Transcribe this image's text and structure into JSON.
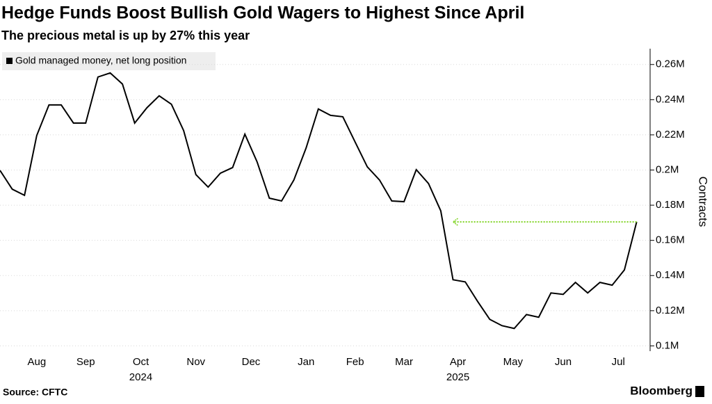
{
  "chart_data": {
    "type": "line",
    "title": "Hedge Funds Boost Bullish Gold Wagers to Highest Since April",
    "subtitle": "The precious metal is up by 27% this year",
    "y_axis_label": "Contracts",
    "source": "Source: CFTC",
    "brand": "Bloomberg",
    "x": [
      0,
      1,
      2,
      3,
      4,
      5,
      6,
      7,
      8,
      9,
      10,
      11,
      12,
      13,
      14,
      15,
      16,
      17,
      18,
      19,
      20,
      21,
      22,
      23,
      24,
      25,
      26,
      27,
      28,
      29,
      30,
      31,
      32,
      33,
      34,
      35,
      36,
      37,
      38,
      39,
      40,
      41,
      42,
      43,
      44,
      45,
      46,
      47,
      48,
      49,
      50,
      51,
      52
    ],
    "xlim": [
      0,
      53.1
    ],
    "xticks": [
      {
        "value": 3.0,
        "label": "Aug"
      },
      {
        "value": 7.0,
        "label": "Sep"
      },
      {
        "value": 11.5,
        "label": "Oct"
      },
      {
        "value": 16.0,
        "label": "Nov"
      },
      {
        "value": 20.5,
        "label": "Dec"
      },
      {
        "value": 25.0,
        "label": "Jan"
      },
      {
        "value": 29.0,
        "label": "Feb"
      },
      {
        "value": 33.0,
        "label": "Mar"
      },
      {
        "value": 37.4,
        "label": "Apr"
      },
      {
        "value": 41.9,
        "label": "May"
      },
      {
        "value": 46.0,
        "label": "Jun"
      },
      {
        "value": 50.5,
        "label": "Jul"
      }
    ],
    "year_labels": [
      {
        "value": 11.5,
        "label": "2024"
      },
      {
        "value": 37.4,
        "label": "2025"
      }
    ],
    "series": [
      {
        "name": "Gold managed money, net long position",
        "color": "#000000",
        "values": [
          199800,
          189100,
          185600,
          219600,
          237000,
          237000,
          226700,
          226700,
          252900,
          255200,
          248900,
          226700,
          235400,
          242200,
          237400,
          222400,
          197400,
          190300,
          198200,
          201400,
          220400,
          204600,
          184000,
          182400,
          194300,
          212500,
          234700,
          231100,
          230300,
          216000,
          201800,
          194300,
          182400,
          182000,
          200200,
          192300,
          176800,
          137600,
          136400,
          125400,
          115100,
          111500,
          109900,
          117800,
          116300,
          130100,
          129300,
          136100,
          130100,
          136100,
          134500,
          143200,
          170500
        ]
      }
    ],
    "arrow": {
      "x_end": 37,
      "color": "#7ed321"
    },
    "ylim": [
      97000,
      269000
    ],
    "yticks": [
      {
        "value": 100000,
        "label": "0.1M"
      },
      {
        "value": 120000,
        "label": "0.12M"
      },
      {
        "value": 140000,
        "label": "0.14M"
      },
      {
        "value": 160000,
        "label": "0.16M"
      },
      {
        "value": 180000,
        "label": "0.18M"
      },
      {
        "value": 200000,
        "label": "0.2M"
      },
      {
        "value": 220000,
        "label": "0.22M"
      },
      {
        "value": 240000,
        "label": "0.24M"
      },
      {
        "value": 260000,
        "label": "0.26M"
      }
    ],
    "grid": true
  }
}
